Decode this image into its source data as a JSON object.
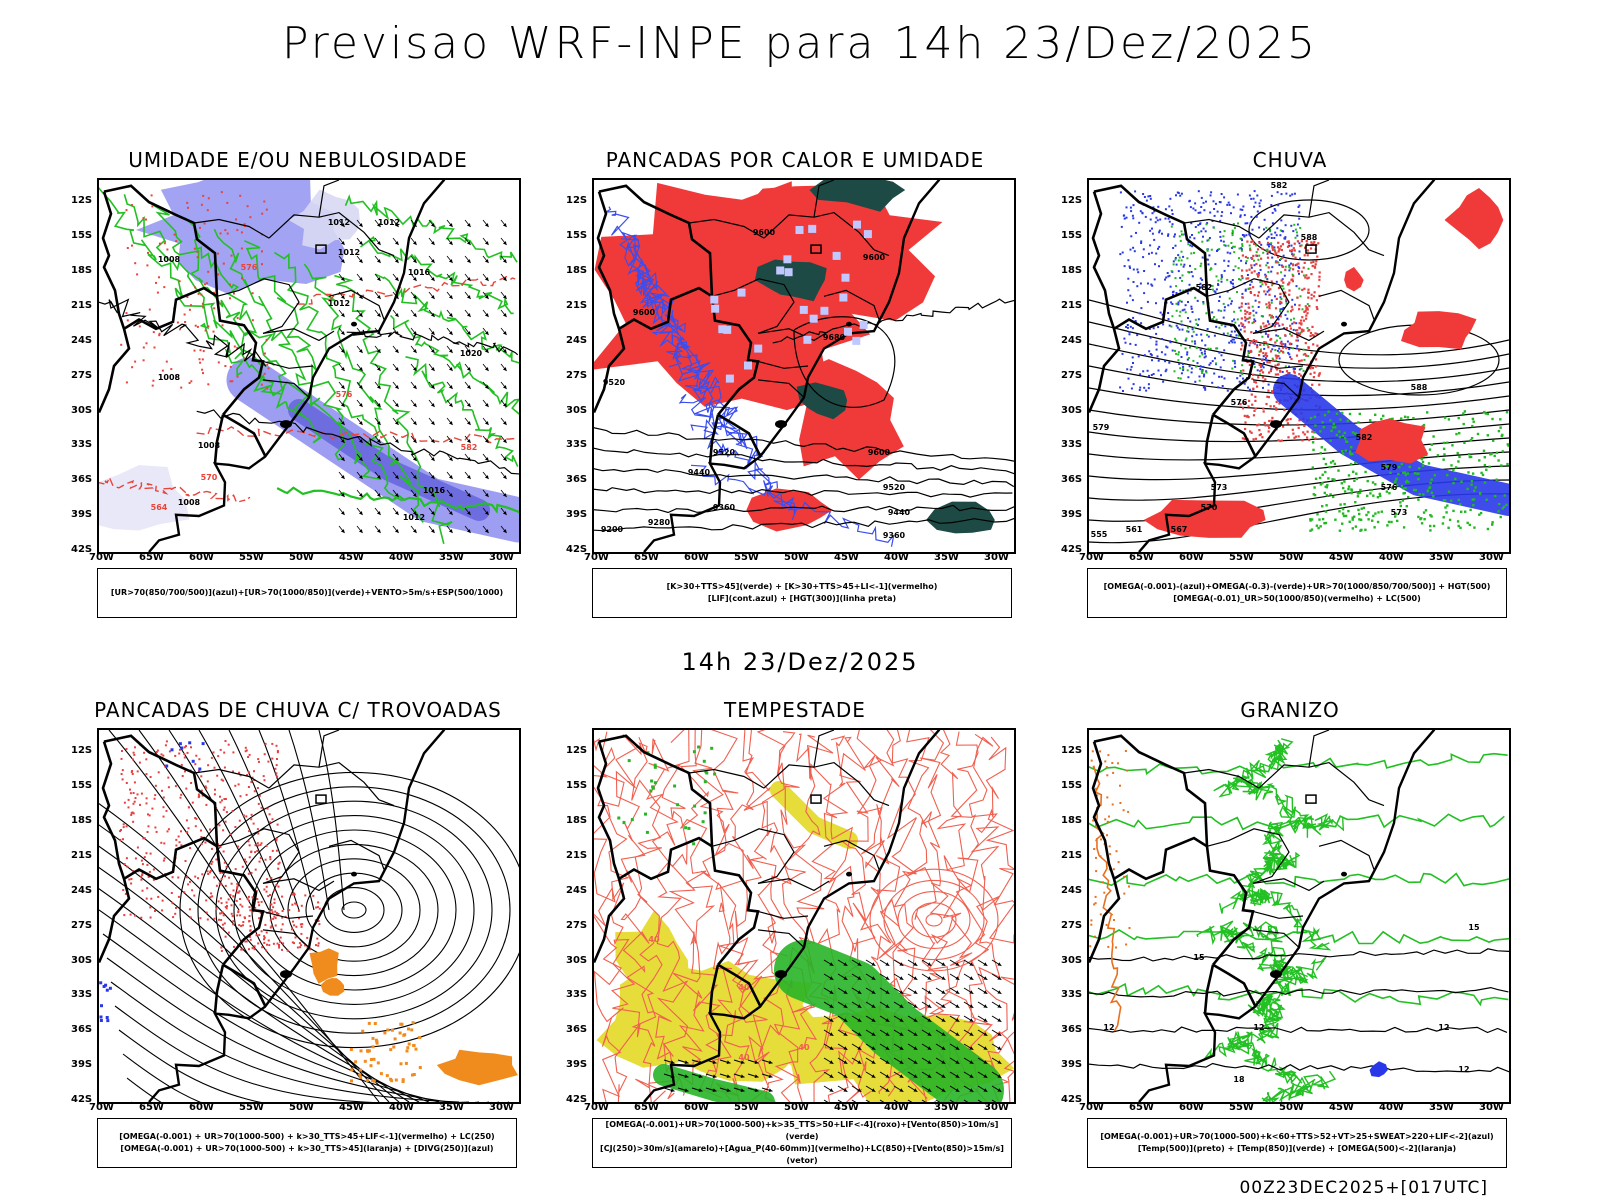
{
  "header": {
    "title": "Previsao WRF-INPE  para 14h 23/Dez/2025"
  },
  "middle": {
    "title": "14h 23/Dez/2025"
  },
  "footer": {
    "stamp": "00Z23DEC2025+[017UTC]"
  },
  "axes": {
    "lat_labels": [
      "12S",
      "15S",
      "18S",
      "21S",
      "24S",
      "27S",
      "30S",
      "33S",
      "36S",
      "39S",
      "42S"
    ],
    "lon_labels": [
      "70W",
      "65W",
      "60W",
      "55W",
      "50W",
      "45W",
      "40W",
      "35W",
      "30W"
    ]
  },
  "panels": [
    {
      "title": "UMIDADE E/OU NEBULOSIDADE",
      "legend": [
        "[UR>70(850/700/500)](azul)+[UR>70(1000/850)](verde)+VENTO>5m/s+ESP(500/1000)"
      ],
      "contour_labels": [
        "1012",
        "1012",
        "1012",
        "1008",
        "1016",
        "1012",
        "1020",
        "1008",
        "1008",
        "1016",
        "1012",
        "1008",
        "576",
        "570",
        "564",
        "576",
        "582"
      ]
    },
    {
      "title": "PANCADAS POR CALOR E UMIDADE",
      "legend": [
        "[K>30+TTS>45](verde) + [K>30+TTS>45+LI<-1](vermelho)",
        "[LIF](cont.azul) + [HGT(300)](linha preta)"
      ],
      "contour_labels": [
        "9600",
        "9600",
        "9600",
        "9520",
        "9680",
        "9600",
        "9520",
        "9440",
        "9360",
        "9280",
        "9200",
        "9440",
        "9360",
        "9520"
      ]
    },
    {
      "title": "CHUVA",
      "legend": [
        "[OMEGA(-0.001)-(azul)+OMEGA(-0.3)-(verde)+UR>70(1000/850/700/500)] + HGT(500)",
        "[OMEGA(-0.01)_UR>50(1000/850)(vermelho) + LC(500)"
      ],
      "contour_labels": [
        "582",
        "588",
        "582",
        "579",
        "576",
        "573",
        "570",
        "567",
        "561",
        "555",
        "588",
        "582",
        "579",
        "576",
        "573"
      ]
    },
    {
      "title": "PANCADAS DE CHUVA C/ TROVOADAS",
      "legend": [
        "[OMEGA(-0.001) + UR>70(1000-500) + k>30_TTS>45+LIF<-1](vermelho) + LC(250)",
        "[OMEGA(-0.001) + UR>70(1000-500) + k>30_TTS>45](laranja) + [DIVG(250)](azul)"
      ],
      "contour_labels": []
    },
    {
      "title": "TEMPESTADE",
      "legend": [
        "[OMEGA(-0.001)+UR>70(1000-500)+k>35_TTS>50+LIF<-4](roxo)+[Vento(850)>10m/s](verde)",
        "[CJ(250)>30m/s](amarelo)+[Agua_P(40-60mm)](vermelho)+LC(850)+[Vento(850)>15m/s](vetor)"
      ],
      "contour_labels": [
        "40",
        "40",
        "40",
        "40"
      ]
    },
    {
      "title": "GRANIZO",
      "legend": [
        "[OMEGA(-0.001)+UR>70(1000-500)+k<60+TTS>52+VT>25+SWEAT>220+LIF<-2](azul)",
        "[Temp(500)](preto) + [Temp(850)](verde) + [OMEGA(500)<-2](laranja)"
      ],
      "contour_labels": [
        "12",
        "12",
        "12",
        "12",
        "15",
        "15",
        "18"
      ]
    }
  ],
  "colors": {
    "blue_humidity": "#8c8cf0",
    "green_contour": "#22c022",
    "red_area": "#f03a3a",
    "dark_teal": "#1e4a46",
    "yellow_jet": "#e6dc3a",
    "orange_area": "#f08c1e",
    "blue_area": "#1e3cf0"
  }
}
